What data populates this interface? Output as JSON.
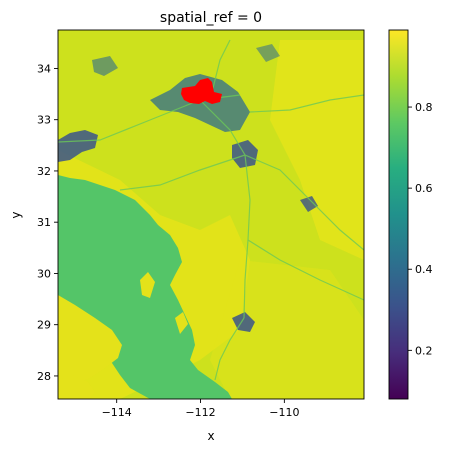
{
  "chart_data": {
    "type": "heatmap",
    "title": "spatial_ref = 0",
    "xlabel": "x",
    "ylabel": "y",
    "xlim": [
      -115.4,
      -108.1
    ],
    "ylim": [
      27.55,
      34.75
    ],
    "xticks": [
      -114,
      -112,
      -110
    ],
    "xtick_labels": [
      "−114",
      "−112",
      "−110"
    ],
    "yticks": [
      28,
      29,
      30,
      31,
      32,
      33,
      34
    ],
    "ytick_labels": [
      "28",
      "29",
      "30",
      "31",
      "32",
      "33",
      "34"
    ],
    "colorbar": {
      "range": [
        0.08,
        0.99
      ],
      "ticks": [
        0.2,
        0.4,
        0.6,
        0.8
      ],
      "tick_labels": [
        "0.2",
        "0.4",
        "0.6",
        "0.8"
      ],
      "colormap": "viridis"
    },
    "colors": {
      "field": "#cde11d",
      "field_bright": "#f0e51c",
      "water_mask": "#54c568",
      "urban_low": "#2f6c8e",
      "urban_mid": "#3a538b",
      "roads": "#6cc957",
      "highlight": "#ff0000"
    }
  }
}
